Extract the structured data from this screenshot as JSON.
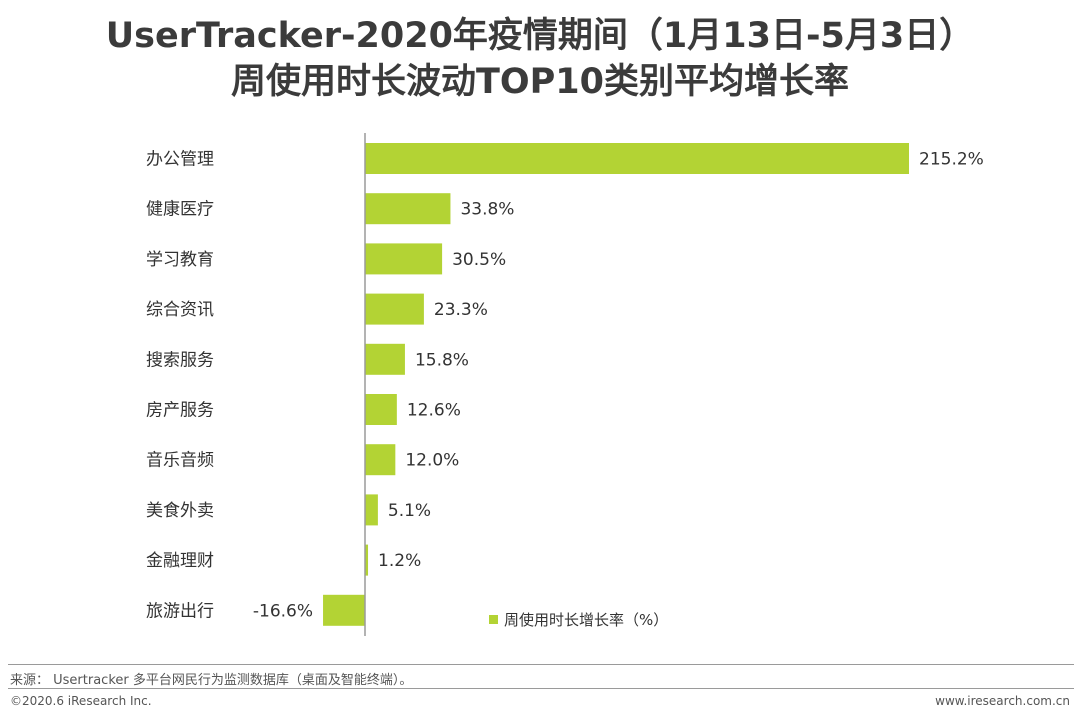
{
  "header": {
    "title_line1": "UserTracker-2020年疫情期间（1月13日-5月3日）",
    "title_line2": "周使用时长波动TOP10类别平均增长率"
  },
  "chart_data": {
    "type": "bar",
    "orientation": "horizontal",
    "title": "UserTracker-2020年疫情期间（1月13日-5月3日）周使用时长波动TOP10类别平均增长率",
    "categories": [
      "办公管理",
      "健康医疗",
      "学习教育",
      "综合资讯",
      "搜索服务",
      "房产服务",
      "音乐音频",
      "美食外卖",
      "金融理财",
      "旅游出行"
    ],
    "series": [
      {
        "name": "周使用时长增长率（%）",
        "values": [
          215.2,
          33.8,
          30.5,
          23.3,
          15.8,
          12.6,
          12.0,
          5.1,
          1.2,
          -16.6
        ]
      }
    ],
    "value_labels": [
      "215.2%",
      "33.8%",
      "30.5%",
      "23.3%",
      "15.8%",
      "12.6%",
      "12.0%",
      "5.1%",
      "1.2%",
      "-16.6%"
    ],
    "xlim": [
      -16.6,
      215.2
    ],
    "color": "#b3d334",
    "legend": "bottom-right",
    "grid": false
  },
  "footer": {
    "source": "来源： Usertracker 多平台网民行为监测数据库（桌面及智能终端）。",
    "copyright": "©2020.6 iResearch Inc.",
    "website": "www.iresearch.com.cn"
  }
}
